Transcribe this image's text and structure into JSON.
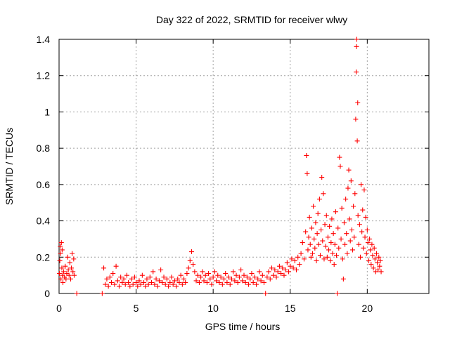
{
  "chart_data": {
    "type": "scatter",
    "title": "Day 322 of 2022, SRMTID for receiver wlwy",
    "xlabel": "GPS time / hours",
    "ylabel": "SRMTID / TECUs",
    "xlim": [
      0,
      24
    ],
    "ylim": [
      0,
      1.4
    ],
    "xticks": [
      "0",
      "5",
      "10",
      "15",
      "20"
    ],
    "yticks": [
      "0",
      "0.2",
      "0.4",
      "0.6",
      "0.8",
      "1",
      "1.2",
      "1.4"
    ],
    "grid": true,
    "series": [
      {
        "name": "SRMTID",
        "marker": "+",
        "color": "#ff0000",
        "points": [
          [
            0.02,
            0.11
          ],
          [
            0.05,
            0.18
          ],
          [
            0.08,
            0.26
          ],
          [
            0.1,
            0.22
          ],
          [
            0.12,
            0.08
          ],
          [
            0.15,
            0.28
          ],
          [
            0.18,
            0.14
          ],
          [
            0.2,
            0.24
          ],
          [
            0.22,
            0.1
          ],
          [
            0.25,
            0.06
          ],
          [
            0.3,
            0.12
          ],
          [
            0.35,
            0.09
          ],
          [
            0.4,
            0.15
          ],
          [
            0.45,
            0.08
          ],
          [
            0.5,
            0.11
          ],
          [
            0.55,
            0.2
          ],
          [
            0.6,
            0.13
          ],
          [
            0.65,
            0.1
          ],
          [
            0.7,
            0.17
          ],
          [
            0.75,
            0.08
          ],
          [
            0.8,
            0.14
          ],
          [
            0.85,
            0.22
          ],
          [
            0.9,
            0.12
          ],
          [
            0.95,
            0.19
          ],
          [
            0.98,
            0.1
          ],
          [
            1.15,
            0.0
          ],
          [
            2.8,
            0.0
          ],
          [
            2.9,
            0.14
          ],
          [
            3.0,
            0.05
          ],
          [
            3.1,
            0.08
          ],
          [
            3.2,
            0.04
          ],
          [
            3.3,
            0.09
          ],
          [
            3.4,
            0.06
          ],
          [
            3.5,
            0.11
          ],
          [
            3.6,
            0.05
          ],
          [
            3.7,
            0.15
          ],
          [
            3.8,
            0.07
          ],
          [
            3.9,
            0.04
          ],
          [
            4.0,
            0.09
          ],
          [
            4.1,
            0.06
          ],
          [
            4.2,
            0.08
          ],
          [
            4.3,
            0.05
          ],
          [
            4.4,
            0.1
          ],
          [
            4.5,
            0.06
          ],
          [
            4.6,
            0.04
          ],
          [
            4.7,
            0.08
          ],
          [
            4.8,
            0.05
          ],
          [
            4.9,
            0.09
          ],
          [
            5.0,
            0.06
          ],
          [
            5.1,
            0.04
          ],
          [
            5.2,
            0.07
          ],
          [
            5.3,
            0.05
          ],
          [
            5.4,
            0.1
          ],
          [
            5.5,
            0.06
          ],
          [
            5.6,
            0.04
          ],
          [
            5.7,
            0.08
          ],
          [
            5.8,
            0.05
          ],
          [
            5.9,
            0.09
          ],
          [
            6.0,
            0.06
          ],
          [
            6.1,
            0.12
          ],
          [
            6.2,
            0.05
          ],
          [
            6.3,
            0.08
          ],
          [
            6.4,
            0.04
          ],
          [
            6.5,
            0.07
          ],
          [
            6.6,
            0.13
          ],
          [
            6.7,
            0.06
          ],
          [
            6.8,
            0.09
          ],
          [
            6.9,
            0.05
          ],
          [
            7.0,
            0.08
          ],
          [
            7.1,
            0.04
          ],
          [
            7.2,
            0.06
          ],
          [
            7.3,
            0.09
          ],
          [
            7.4,
            0.05
          ],
          [
            7.5,
            0.07
          ],
          [
            7.6,
            0.04
          ],
          [
            7.7,
            0.08
          ],
          [
            7.8,
            0.06
          ],
          [
            7.9,
            0.1
          ],
          [
            8.0,
            0.05
          ],
          [
            8.1,
            0.08
          ],
          [
            8.2,
            0.06
          ],
          [
            8.3,
            0.11
          ],
          [
            8.4,
            0.14
          ],
          [
            8.5,
            0.18
          ],
          [
            8.6,
            0.23
          ],
          [
            8.7,
            0.16
          ],
          [
            8.8,
            0.12
          ],
          [
            8.9,
            0.07
          ],
          [
            9.0,
            0.1
          ],
          [
            9.1,
            0.06
          ],
          [
            9.2,
            0.09
          ],
          [
            9.3,
            0.12
          ],
          [
            9.4,
            0.07
          ],
          [
            9.5,
            0.1
          ],
          [
            9.6,
            0.06
          ],
          [
            9.7,
            0.11
          ],
          [
            9.8,
            0.08
          ],
          [
            9.9,
            0.05
          ],
          [
            10.0,
            0.09
          ],
          [
            10.1,
            0.12
          ],
          [
            10.2,
            0.07
          ],
          [
            10.3,
            0.1
          ],
          [
            10.4,
            0.06
          ],
          [
            10.5,
            0.09
          ],
          [
            10.6,
            0.05
          ],
          [
            10.7,
            0.08
          ],
          [
            10.8,
            0.11
          ],
          [
            10.9,
            0.06
          ],
          [
            11.0,
            0.09
          ],
          [
            11.1,
            0.05
          ],
          [
            11.2,
            0.08
          ],
          [
            11.3,
            0.12
          ],
          [
            11.4,
            0.07
          ],
          [
            11.5,
            0.1
          ],
          [
            11.6,
            0.06
          ],
          [
            11.7,
            0.09
          ],
          [
            11.8,
            0.13
          ],
          [
            11.9,
            0.07
          ],
          [
            12.0,
            0.1
          ],
          [
            12.1,
            0.06
          ],
          [
            12.2,
            0.09
          ],
          [
            12.3,
            0.05
          ],
          [
            12.4,
            0.08
          ],
          [
            12.5,
            0.11
          ],
          [
            12.6,
            0.06
          ],
          [
            12.7,
            0.09
          ],
          [
            12.8,
            0.05
          ],
          [
            12.9,
            0.08
          ],
          [
            13.0,
            0.12
          ],
          [
            13.1,
            0.07
          ],
          [
            13.2,
            0.1
          ],
          [
            13.3,
            0.06
          ],
          [
            13.4,
            0.0
          ],
          [
            13.5,
            0.09
          ],
          [
            13.6,
            0.12
          ],
          [
            13.7,
            0.08
          ],
          [
            13.8,
            0.14
          ],
          [
            13.9,
            0.1
          ],
          [
            14.0,
            0.13
          ],
          [
            14.1,
            0.09
          ],
          [
            14.2,
            0.12
          ],
          [
            14.3,
            0.15
          ],
          [
            14.4,
            0.11
          ],
          [
            14.5,
            0.14
          ],
          [
            14.6,
            0.1
          ],
          [
            14.7,
            0.13
          ],
          [
            14.8,
            0.17
          ],
          [
            14.9,
            0.12
          ],
          [
            15.0,
            0.15
          ],
          [
            15.1,
            0.19
          ],
          [
            15.2,
            0.14
          ],
          [
            15.3,
            0.18
          ],
          [
            15.4,
            0.13
          ],
          [
            15.5,
            0.2
          ],
          [
            15.6,
            0.16
          ],
          [
            15.7,
            0.22
          ],
          [
            15.8,
            0.28
          ],
          [
            15.9,
            0.19
          ],
          [
            16.0,
            0.34
          ],
          [
            16.05,
            0.76
          ],
          [
            16.1,
            0.66
          ],
          [
            16.15,
            0.24
          ],
          [
            16.2,
            0.31
          ],
          [
            16.25,
            0.42
          ],
          [
            16.3,
            0.27
          ],
          [
            16.35,
            0.2
          ],
          [
            16.4,
            0.36
          ],
          [
            16.45,
            0.22
          ],
          [
            16.5,
            0.48
          ],
          [
            16.55,
            0.3
          ],
          [
            16.6,
            0.25
          ],
          [
            16.65,
            0.39
          ],
          [
            16.7,
            0.18
          ],
          [
            16.75,
            0.33
          ],
          [
            16.8,
            0.44
          ],
          [
            16.85,
            0.27
          ],
          [
            16.9,
            0.52
          ],
          [
            16.95,
            0.21
          ],
          [
            17.0,
            0.35
          ],
          [
            17.05,
            0.64
          ],
          [
            17.1,
            0.29
          ],
          [
            17.15,
            0.55
          ],
          [
            17.2,
            0.19
          ],
          [
            17.25,
            0.38
          ],
          [
            17.3,
            0.26
          ],
          [
            17.35,
            0.43
          ],
          [
            17.4,
            0.2
          ],
          [
            17.45,
            0.31
          ],
          [
            17.5,
            0.24
          ],
          [
            17.55,
            0.37
          ],
          [
            17.6,
            0.18
          ],
          [
            17.65,
            0.28
          ],
          [
            17.7,
            0.41
          ],
          [
            17.75,
            0.22
          ],
          [
            17.8,
            0.33
          ],
          [
            17.85,
            0.16
          ],
          [
            17.9,
            0.27
          ],
          [
            17.95,
            0.45
          ],
          [
            18.0,
            0.21
          ],
          [
            18.05,
            0.0
          ],
          [
            18.1,
            0.36
          ],
          [
            18.15,
            0.25
          ],
          [
            18.2,
            0.75
          ],
          [
            18.25,
            0.7
          ],
          [
            18.3,
            0.3
          ],
          [
            18.35,
            0.47
          ],
          [
            18.4,
            0.19
          ],
          [
            18.45,
            0.08
          ],
          [
            18.5,
            0.39
          ],
          [
            18.55,
            0.27
          ],
          [
            18.6,
            0.52
          ],
          [
            18.65,
            0.33
          ],
          [
            18.7,
            0.22
          ],
          [
            18.75,
            0.58
          ],
          [
            18.8,
            0.68
          ],
          [
            18.85,
            0.41
          ],
          [
            18.9,
            0.29
          ],
          [
            18.95,
            0.62
          ],
          [
            19.0,
            0.35
          ],
          [
            19.05,
            0.24
          ],
          [
            19.1,
            0.48
          ],
          [
            19.15,
            0.31
          ],
          [
            19.2,
            0.55
          ],
          [
            19.25,
            0.96
          ],
          [
            19.28,
            1.22
          ],
          [
            19.3,
            1.36
          ],
          [
            19.32,
            1.4
          ],
          [
            19.35,
            0.84
          ],
          [
            19.38,
            1.05
          ],
          [
            19.4,
            0.43
          ],
          [
            19.45,
            0.27
          ],
          [
            19.5,
            0.38
          ],
          [
            19.55,
            0.2
          ],
          [
            19.6,
            0.6
          ],
          [
            19.65,
            0.34
          ],
          [
            19.7,
            0.46
          ],
          [
            19.75,
            0.25
          ],
          [
            19.8,
            0.57
          ],
          [
            19.85,
            0.31
          ],
          [
            19.9,
            0.42
          ],
          [
            19.95,
            0.22
          ],
          [
            20.0,
            0.35
          ],
          [
            20.05,
            0.28
          ],
          [
            20.1,
            0.18
          ],
          [
            20.15,
            0.3
          ],
          [
            20.2,
            0.24
          ],
          [
            20.25,
            0.16
          ],
          [
            20.3,
            0.27
          ],
          [
            20.35,
            0.21
          ],
          [
            20.4,
            0.14
          ],
          [
            20.45,
            0.25
          ],
          [
            20.5,
            0.19
          ],
          [
            20.55,
            0.12
          ],
          [
            20.6,
            0.22
          ],
          [
            20.65,
            0.17
          ],
          [
            20.7,
            0.13
          ],
          [
            20.75,
            0.2
          ],
          [
            20.8,
            0.15
          ],
          [
            20.85,
            0.18
          ],
          [
            20.9,
            0.12
          ]
        ]
      }
    ]
  }
}
